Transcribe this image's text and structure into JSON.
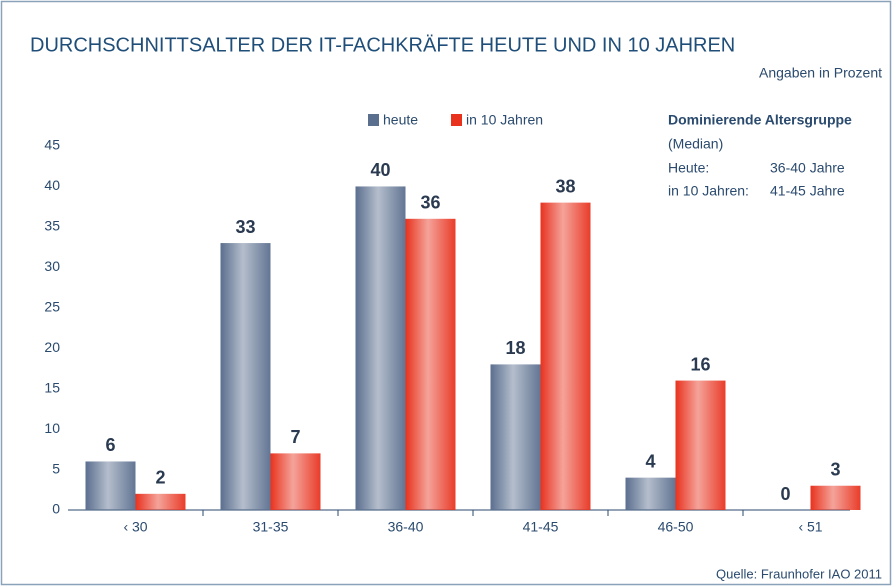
{
  "chart_data": {
    "type": "bar",
    "title": "DURCHSCHNITTSALTER DER IT-FACHKRÄFTE HEUTE UND IN 10 JAHREN",
    "subtitle": "Angaben in Prozent",
    "categories": [
      "‹ 30",
      "31-35",
      "36-40",
      "41-45",
      "46-50",
      "‹ 51"
    ],
    "series": [
      {
        "name": "heute",
        "color": "#5a6e8e",
        "values": [
          6,
          33,
          40,
          18,
          4,
          0
        ]
      },
      {
        "name": "in 10 Jahren",
        "color": "#e8321e",
        "values": [
          2,
          7,
          36,
          38,
          16,
          3
        ]
      }
    ],
    "ylim": [
      0,
      45
    ],
    "yticks": [
      0,
      5,
      10,
      15,
      20,
      25,
      30,
      35,
      40,
      45
    ],
    "grid": false,
    "annotation": {
      "title": "Dominierende Altersgruppe",
      "note": "(Median)",
      "rows": [
        [
          "Heute:",
          "36-40 Jahre"
        ],
        [
          "in 10 Jahren:",
          "41-45 Jahre"
        ]
      ]
    },
    "source": "Quelle: Fraunhofer IAO 2011"
  }
}
